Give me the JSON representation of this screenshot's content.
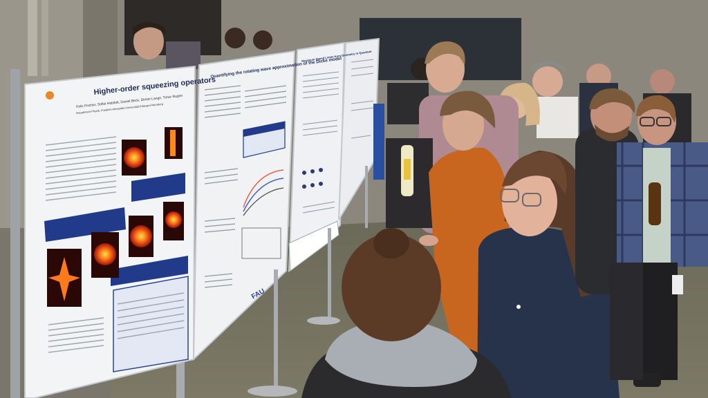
{
  "scene": {
    "description_tag": "poster-session",
    "colors": {
      "floor": "#6f6d5c",
      "wall": "#7e7a70",
      "poster_paper": "#f2f3f5",
      "poster_blue": "#1f3a8a",
      "orange_sweater": "#c8661f",
      "navy_hoodie": "#233147"
    }
  },
  "posters": {
    "p1": {
      "title": "Higher-order squeezing operators",
      "authors": "Felix Fischer, Sofiel Habibdi, Daniel Beck, Dimitri Lange, Timur Rugen",
      "affiliation": "Department Physik, Friedrich-Alexander-Universität Erlangen-Nürnberg"
    },
    "p2": {
      "title": "Quantifying the rotating wave approximation of the Dicke model",
      "logo": "FAU"
    },
    "p3": {
      "title": "Maximum Speed Limits from Geometry in Quantum"
    }
  }
}
